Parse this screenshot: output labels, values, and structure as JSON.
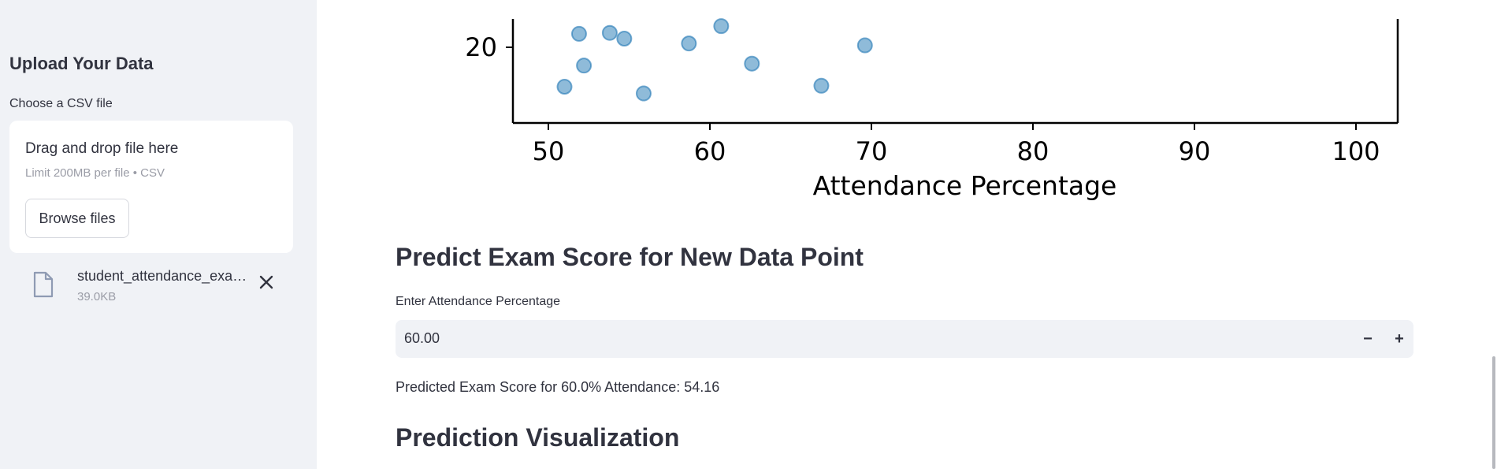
{
  "sidebar": {
    "title": "Upload Your Data",
    "file_label": "Choose a CSV file",
    "dropzone": {
      "title": "Drag and drop file here",
      "limit": "Limit 200MB per file • CSV",
      "browse_label": "Browse files"
    },
    "uploaded_file": {
      "name": "student_attendance_exa…",
      "size": "39.0KB"
    }
  },
  "chart_data": {
    "type": "scatter",
    "xlabel": "Attendance Percentage",
    "ylabel": "",
    "xlim": [
      48,
      102
    ],
    "x_ticks": [
      "50",
      "60",
      "70",
      "80",
      "90",
      "100"
    ],
    "y_ticks": [
      "20"
    ],
    "series": [
      {
        "x": [
          51.0,
          51.9,
          52.2,
          53.8,
          54.7,
          55.9,
          58.7,
          60.7,
          62.6,
          66.9,
          69.6
        ],
        "y": [
          15.9,
          21.4,
          18.1,
          21.5,
          20.9,
          15.2,
          20.4,
          22.2,
          18.3,
          16.0,
          20.2
        ]
      }
    ],
    "color": "#1f77b4"
  },
  "main": {
    "predict_title": "Predict Exam Score for New Data Point",
    "input_label": "Enter Attendance Percentage",
    "input_value": "60.00",
    "minus_label": "−",
    "plus_label": "+",
    "prediction_text": "Predicted Exam Score for 60.0% Attendance: 54.16",
    "viz_title": "Prediction Visualization"
  },
  "colors": {
    "sidebar_bg": "#f0f2f6",
    "input_bg": "#f0f2f6",
    "point": "#1f77b4"
  }
}
